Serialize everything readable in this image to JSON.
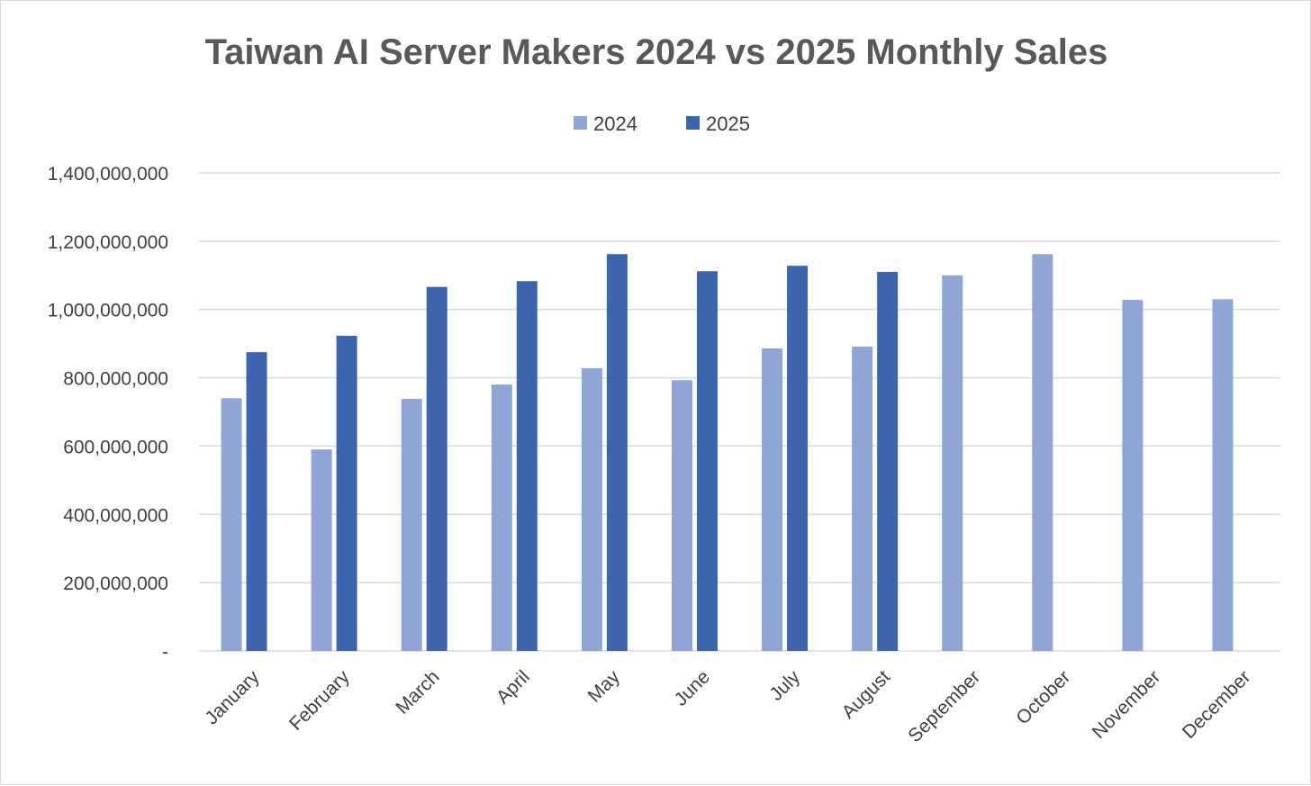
{
  "chart_data": {
    "type": "bar",
    "title": "Taiwan AI Server Makers 2024 vs 2025 Monthly Sales",
    "xlabel": "",
    "ylabel": "",
    "categories": [
      "January",
      "February",
      "March",
      "April",
      "May",
      "June",
      "July",
      "August",
      "September",
      "October",
      "November",
      "December"
    ],
    "series": [
      {
        "name": "2024",
        "color": "#8FA5D6",
        "values": [
          740000000,
          590000000,
          738000000,
          780000000,
          828000000,
          793000000,
          886000000,
          891000000,
          1100000000,
          1162000000,
          1028000000,
          1030000000
        ]
      },
      {
        "name": "2025",
        "color": "#3C65AE",
        "values": [
          875000000,
          923000000,
          1066000000,
          1083000000,
          1162000000,
          1112000000,
          1128000000,
          1110000000,
          null,
          null,
          null,
          null
        ]
      }
    ],
    "ylim": [
      0,
      1400000000
    ],
    "yticks": [
      0,
      200000000,
      400000000,
      600000000,
      800000000,
      1000000000,
      1200000000,
      1400000000
    ],
    "ytick_labels": [
      "-",
      "200,000,000",
      "400,000,000",
      "600,000,000",
      "800,000,000",
      "1,000,000,000",
      "1,200,000,000",
      "1,400,000,000"
    ],
    "grid": true,
    "legend_position": "top-center"
  }
}
